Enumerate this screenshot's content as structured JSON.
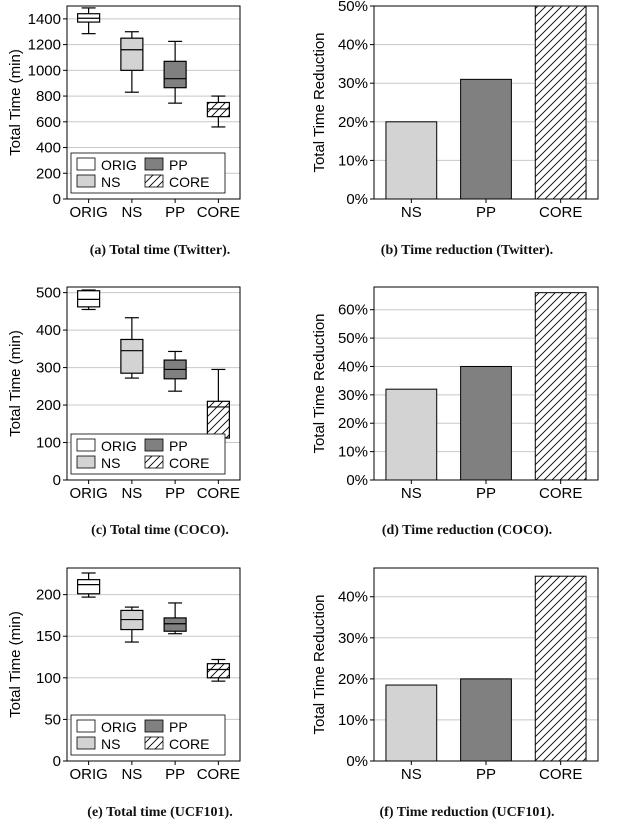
{
  "colors": {
    "orig": "#ffffff",
    "ns": "#d3d3d3",
    "pp": "#808080",
    "core_hatch": "#000000",
    "grid": "#c8c8c8"
  },
  "legend": {
    "orig": "ORIG",
    "ns": "NS",
    "pp": "PP",
    "core": "CORE"
  },
  "chart_data": [
    {
      "type": "box",
      "caption": "(a) Total time (Twitter).",
      "ylabel": "Total Time (min)",
      "ylim": [
        0,
        1500
      ],
      "yticks": [
        0,
        200,
        400,
        600,
        800,
        1000,
        1200,
        1400
      ],
      "categories": [
        "ORIG",
        "NS",
        "PP",
        "CORE"
      ],
      "boxes": [
        {
          "name": "ORIG",
          "min": 1285,
          "q1": 1375,
          "median": 1405,
          "q3": 1440,
          "max": 1485
        },
        {
          "name": "NS",
          "min": 830,
          "q1": 1000,
          "median": 1160,
          "q3": 1250,
          "max": 1300
        },
        {
          "name": "PP",
          "min": 745,
          "q1": 865,
          "median": 935,
          "q3": 1070,
          "max": 1225
        },
        {
          "name": "CORE",
          "min": 560,
          "q1": 640,
          "median": 700,
          "q3": 750,
          "max": 800
        }
      ],
      "legend_placement": "bottom-left"
    },
    {
      "type": "bar",
      "caption": "(b) Time reduction (Twitter).",
      "ylabel": "Total Time Reduction",
      "ylim": [
        0,
        50
      ],
      "yticks": [
        0,
        10,
        20,
        30,
        40,
        50
      ],
      "tick_suffix": "%",
      "categories": [
        "NS",
        "PP",
        "CORE"
      ],
      "values": [
        20,
        31,
        50
      ]
    },
    {
      "type": "box",
      "caption": "(c) Total time (COCO).",
      "ylabel": "Total Time (min)",
      "ylim": [
        0,
        515
      ],
      "yticks": [
        0,
        100,
        200,
        300,
        400,
        500
      ],
      "categories": [
        "ORIG",
        "NS",
        "PP",
        "CORE"
      ],
      "boxes": [
        {
          "name": "ORIG",
          "min": 455,
          "q1": 462,
          "median": 482,
          "q3": 505,
          "max": 507
        },
        {
          "name": "NS",
          "min": 272,
          "q1": 285,
          "median": 345,
          "q3": 375,
          "max": 433
        },
        {
          "name": "PP",
          "min": 237,
          "q1": 270,
          "median": 295,
          "q3": 320,
          "max": 343
        },
        {
          "name": "CORE",
          "min": 103,
          "q1": 112,
          "median": 195,
          "q3": 210,
          "max": 295
        }
      ],
      "legend_placement": "bottom-left"
    },
    {
      "type": "bar",
      "caption": "(d) Time reduction (COCO).",
      "ylabel": "Total Time Reduction",
      "ylim": [
        0,
        68
      ],
      "yticks": [
        0,
        10,
        20,
        30,
        40,
        50,
        60
      ],
      "tick_suffix": "%",
      "categories": [
        "NS",
        "PP",
        "CORE"
      ],
      "values": [
        32,
        40,
        66
      ]
    },
    {
      "type": "box",
      "caption": "(e) Total time (UCF101).",
      "ylabel": "Total Time (min)",
      "ylim": [
        0,
        232
      ],
      "yticks": [
        0,
        50,
        100,
        150,
        200
      ],
      "categories": [
        "ORIG",
        "NS",
        "PP",
        "CORE"
      ],
      "boxes": [
        {
          "name": "ORIG",
          "min": 197,
          "q1": 201,
          "median": 212,
          "q3": 218,
          "max": 226
        },
        {
          "name": "NS",
          "min": 143,
          "q1": 158,
          "median": 170,
          "q3": 181,
          "max": 185
        },
        {
          "name": "PP",
          "min": 153,
          "q1": 156,
          "median": 165,
          "q3": 172,
          "max": 190
        },
        {
          "name": "CORE",
          "min": 96,
          "q1": 100,
          "median": 110,
          "q3": 117,
          "max": 122
        }
      ],
      "legend_placement": "bottom-left"
    },
    {
      "type": "bar",
      "caption": "(f) Time reduction (UCF101).",
      "ylabel": "Total Time Reduction",
      "ylim": [
        0,
        47
      ],
      "yticks": [
        0,
        10,
        20,
        30,
        40
      ],
      "tick_suffix": "%",
      "categories": [
        "NS",
        "PP",
        "CORE"
      ],
      "values": [
        18.5,
        20,
        45
      ]
    }
  ]
}
